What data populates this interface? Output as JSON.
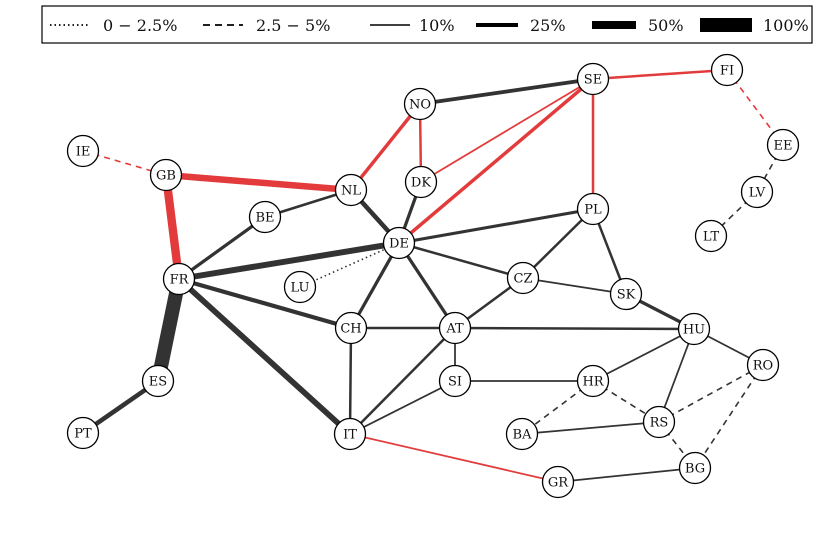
{
  "legend": [
    {
      "label": "0 − 2.5%",
      "style": "dotted"
    },
    {
      "label": "2.5 − 5%",
      "style": "dashed"
    },
    {
      "label": "10%",
      "style": "solid",
      "weight": 10
    },
    {
      "label": "25%",
      "style": "solid",
      "weight": 25
    },
    {
      "label": "50%",
      "style": "solid",
      "weight": 50
    },
    {
      "label": "100%",
      "style": "solid",
      "weight": 100
    }
  ],
  "colors": {
    "dark": "#333333",
    "red": "#e33b3b",
    "node_fill": "#ffffff",
    "node_stroke": "#000000"
  },
  "nodes": [
    "IE",
    "GB",
    "NL",
    "NO",
    "DK",
    "SE",
    "FI",
    "EE",
    "LV",
    "LT",
    "BE",
    "DE",
    "PL",
    "FR",
    "LU",
    "CZ",
    "SK",
    "CH",
    "AT",
    "HU",
    "RO",
    "ES",
    "SI",
    "HR",
    "PT",
    "IT",
    "BA",
    "RS",
    "BG",
    "GR"
  ],
  "edges": [
    {
      "a": "IE",
      "b": "GB",
      "color": "red",
      "style": "dashed",
      "weight": 3
    },
    {
      "a": "GB",
      "b": "NL",
      "color": "red",
      "style": "solid",
      "weight": 30
    },
    {
      "a": "GB",
      "b": "FR",
      "color": "red",
      "style": "solid",
      "weight": 40
    },
    {
      "a": "NO",
      "b": "SE",
      "color": "dark",
      "style": "solid",
      "weight": 16
    },
    {
      "a": "NO",
      "b": "NL",
      "color": "red",
      "style": "solid",
      "weight": 14
    },
    {
      "a": "NO",
      "b": "DK",
      "color": "red",
      "style": "solid",
      "weight": 9
    },
    {
      "a": "SE",
      "b": "FI",
      "color": "red",
      "style": "solid",
      "weight": 9
    },
    {
      "a": "FI",
      "b": "EE",
      "color": "red",
      "style": "dashed",
      "weight": 3
    },
    {
      "a": "EE",
      "b": "LV",
      "color": "dark",
      "style": "dashed",
      "weight": 3
    },
    {
      "a": "LV",
      "b": "LT",
      "color": "dark",
      "style": "dashed",
      "weight": 3
    },
    {
      "a": "SE",
      "b": "DK",
      "color": "red",
      "style": "solid",
      "weight": 5
    },
    {
      "a": "SE",
      "b": "DE",
      "color": "red",
      "style": "solid",
      "weight": 14
    },
    {
      "a": "SE",
      "b": "PL",
      "color": "red",
      "style": "solid",
      "weight": 9
    },
    {
      "a": "DK",
      "b": "DE",
      "color": "dark",
      "style": "solid",
      "weight": 13
    },
    {
      "a": "NL",
      "b": "DE",
      "color": "dark",
      "style": "solid",
      "weight": 20
    },
    {
      "a": "NL",
      "b": "BE",
      "color": "dark",
      "style": "solid",
      "weight": 10
    },
    {
      "a": "BE",
      "b": "FR",
      "color": "dark",
      "style": "solid",
      "weight": 13
    },
    {
      "a": "FR",
      "b": "DE",
      "color": "dark",
      "style": "solid",
      "weight": 27
    },
    {
      "a": "FR",
      "b": "CH",
      "color": "dark",
      "style": "solid",
      "weight": 18
    },
    {
      "a": "FR",
      "b": "IT",
      "color": "dark",
      "style": "solid",
      "weight": 26
    },
    {
      "a": "FR",
      "b": "ES",
      "color": "dark",
      "style": "solid",
      "weight": 70
    },
    {
      "a": "ES",
      "b": "PT",
      "color": "dark",
      "style": "solid",
      "weight": 20
    },
    {
      "a": "LU",
      "b": "DE",
      "color": "dark",
      "style": "dotted",
      "weight": 3
    },
    {
      "a": "DE",
      "b": "PL",
      "color": "dark",
      "style": "solid",
      "weight": 12
    },
    {
      "a": "DE",
      "b": "CZ",
      "color": "dark",
      "style": "solid",
      "weight": 9
    },
    {
      "a": "DE",
      "b": "CH",
      "color": "dark",
      "style": "solid",
      "weight": 13
    },
    {
      "a": "DE",
      "b": "AT",
      "color": "dark",
      "style": "solid",
      "weight": 13
    },
    {
      "a": "PL",
      "b": "CZ",
      "color": "dark",
      "style": "solid",
      "weight": 9
    },
    {
      "a": "PL",
      "b": "SK",
      "color": "dark",
      "style": "solid",
      "weight": 9
    },
    {
      "a": "CZ",
      "b": "SK",
      "color": "dark",
      "style": "solid",
      "weight": 5
    },
    {
      "a": "CZ",
      "b": "AT",
      "color": "dark",
      "style": "solid",
      "weight": 9
    },
    {
      "a": "SK",
      "b": "HU",
      "color": "dark",
      "style": "solid",
      "weight": 13
    },
    {
      "a": "CH",
      "b": "AT",
      "color": "dark",
      "style": "solid",
      "weight": 9
    },
    {
      "a": "CH",
      "b": "IT",
      "color": "dark",
      "style": "solid",
      "weight": 9
    },
    {
      "a": "AT",
      "b": "HU",
      "color": "dark",
      "style": "solid",
      "weight": 9
    },
    {
      "a": "AT",
      "b": "SI",
      "color": "dark",
      "style": "solid",
      "weight": 5
    },
    {
      "a": "AT",
      "b": "IT",
      "color": "dark",
      "style": "solid",
      "weight": 9
    },
    {
      "a": "SI",
      "b": "IT",
      "color": "dark",
      "style": "solid",
      "weight": 5
    },
    {
      "a": "SI",
      "b": "HR",
      "color": "dark",
      "style": "solid",
      "weight": 5
    },
    {
      "a": "HU",
      "b": "HR",
      "color": "dark",
      "style": "solid",
      "weight": 5
    },
    {
      "a": "HU",
      "b": "RS",
      "color": "dark",
      "style": "solid",
      "weight": 5
    },
    {
      "a": "HU",
      "b": "RO",
      "color": "dark",
      "style": "solid",
      "weight": 5
    },
    {
      "a": "HR",
      "b": "BA",
      "color": "dark",
      "style": "dashed",
      "weight": 3
    },
    {
      "a": "HR",
      "b": "RS",
      "color": "dark",
      "style": "dashed",
      "weight": 3
    },
    {
      "a": "BA",
      "b": "RS",
      "color": "dark",
      "style": "solid",
      "weight": 5
    },
    {
      "a": "RS",
      "b": "RO",
      "color": "dark",
      "style": "dashed",
      "weight": 3
    },
    {
      "a": "RS",
      "b": "BG",
      "color": "dark",
      "style": "dashed",
      "weight": 3
    },
    {
      "a": "RO",
      "b": "BG",
      "color": "dark",
      "style": "dashed",
      "weight": 3
    },
    {
      "a": "BG",
      "b": "GR",
      "color": "dark",
      "style": "solid",
      "weight": 5
    },
    {
      "a": "IT",
      "b": "GR",
      "color": "red",
      "style": "solid",
      "weight": 5
    }
  ]
}
